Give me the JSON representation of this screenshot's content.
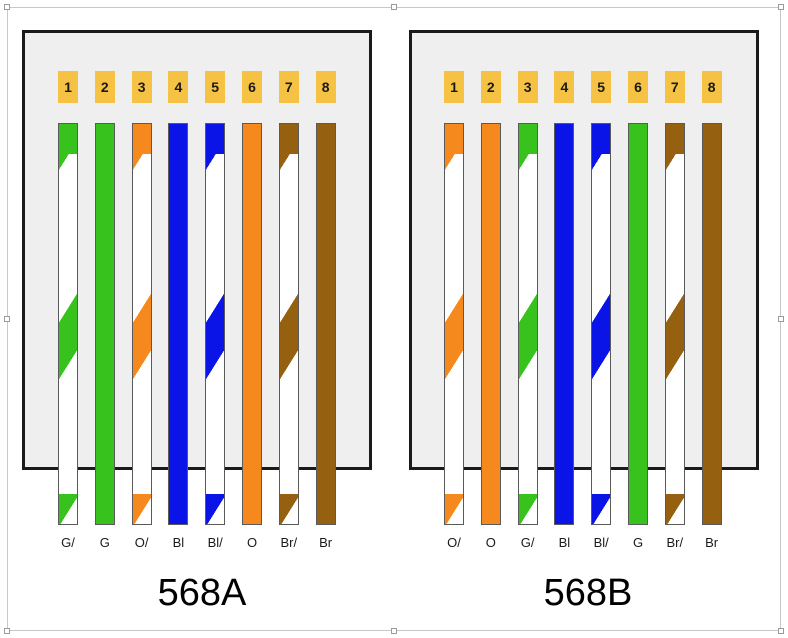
{
  "colors": {
    "green": "#37c21e",
    "orange": "#f5891e",
    "blue": "#0a14e6",
    "brown": "#95600f",
    "white": "#ffffff",
    "pin_badge": "#f6c244",
    "connector_fill": "#efefef",
    "connector_border": "#1a1a1a"
  },
  "standards": [
    {
      "title": "568A",
      "pins": [
        "1",
        "2",
        "3",
        "4",
        "5",
        "6",
        "7",
        "8"
      ],
      "wires": [
        {
          "color": "green",
          "striped": true,
          "label": "G/"
        },
        {
          "color": "green",
          "striped": false,
          "label": "G"
        },
        {
          "color": "orange",
          "striped": true,
          "label": "O/"
        },
        {
          "color": "blue",
          "striped": false,
          "label": "Bl"
        },
        {
          "color": "blue",
          "striped": true,
          "label": "Bl/"
        },
        {
          "color": "orange",
          "striped": false,
          "label": "O"
        },
        {
          "color": "brown",
          "striped": true,
          "label": "Br/"
        },
        {
          "color": "brown",
          "striped": false,
          "label": "Br"
        }
      ]
    },
    {
      "title": "568B",
      "pins": [
        "1",
        "2",
        "3",
        "4",
        "5",
        "6",
        "7",
        "8"
      ],
      "wires": [
        {
          "color": "orange",
          "striped": true,
          "label": "O/"
        },
        {
          "color": "orange",
          "striped": false,
          "label": "O"
        },
        {
          "color": "green",
          "striped": true,
          "label": "G/"
        },
        {
          "color": "blue",
          "striped": false,
          "label": "Bl"
        },
        {
          "color": "blue",
          "striped": true,
          "label": "Bl/"
        },
        {
          "color": "green",
          "striped": false,
          "label": "G"
        },
        {
          "color": "brown",
          "striped": true,
          "label": "Br/"
        },
        {
          "color": "brown",
          "striped": false,
          "label": "Br"
        }
      ]
    }
  ]
}
